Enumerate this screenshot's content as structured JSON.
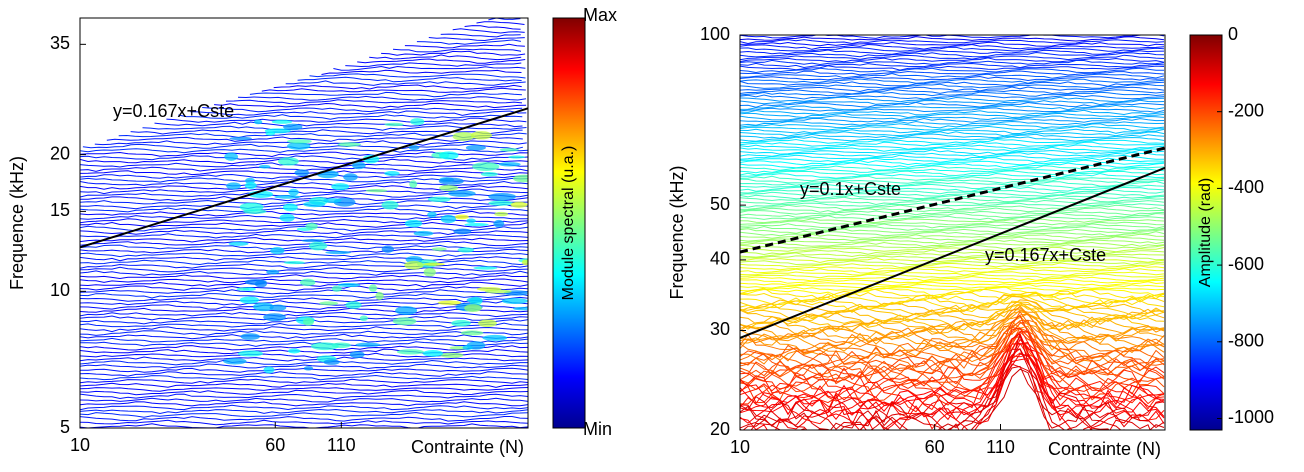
{
  "chart_data": [
    {
      "type": "contour",
      "x_label": "Contrainte (N)",
      "y_label": "Frequence (kHz)",
      "x_log": true,
      "y_log": true,
      "xlim": [
        10,
        610
      ],
      "xticks": [
        10,
        60,
        110
      ],
      "ylim": [
        5,
        40
      ],
      "yticks": [
        5,
        10,
        15,
        20,
        35
      ],
      "colormap": "jet",
      "colorbar": {
        "label": "Module spectral (u.a.)",
        "top_label": "Max",
        "bottom_label": "Min"
      },
      "lines": [
        {
          "label": "y=0.167x+Cste",
          "style": "solid",
          "x": [
            10,
            610
          ],
          "y": [
            12.5,
            25.3
          ]
        }
      ]
    },
    {
      "type": "contour",
      "x_label": "Contrainte (N)",
      "y_label": "Frequence (kHz)",
      "x_log": true,
      "y_log": true,
      "xlim": [
        10,
        500
      ],
      "xticks": [
        10,
        60,
        110
      ],
      "ylim": [
        20,
        100
      ],
      "yticks": [
        20,
        30,
        40,
        50,
        100
      ],
      "colormap": "jet",
      "colorbar": {
        "label": "Amplitude (rad)",
        "clim": [
          -1030,
          0
        ],
        "ticks": [
          0,
          -200,
          -400,
          -600,
          -800,
          -1000
        ]
      },
      "lines": [
        {
          "label": "y=0.1x+Cste",
          "style": "dashed",
          "x": [
            10,
            500
          ],
          "y": [
            41.3,
            63.1
          ]
        },
        {
          "label": "y=0.167x+Cste",
          "style": "solid",
          "x": [
            10,
            500
          ],
          "y": [
            29.1,
            58.2
          ]
        }
      ]
    }
  ]
}
